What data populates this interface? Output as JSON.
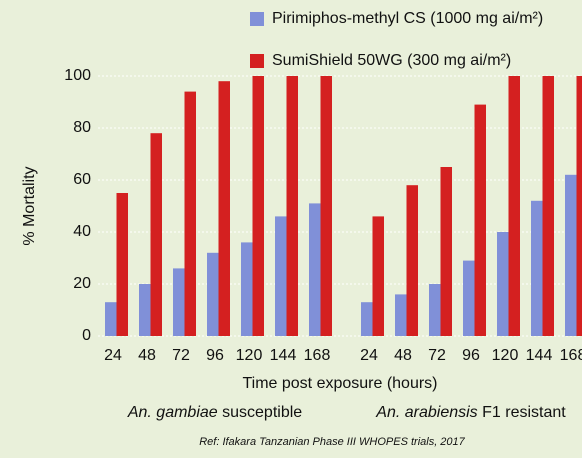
{
  "chart_data": {
    "type": "bar",
    "ylabel": "% Mortality",
    "xlabel": "Time post exposure (hours)",
    "note": "Ref: Ifakara Tanzanian Phase III WHOPES trials, 2017",
    "groups": [
      {
        "species": "An. gambiae",
        "status": "susceptible"
      },
      {
        "species": "An. arabiensis",
        "status": "F1 resistant"
      }
    ],
    "categories": [
      24,
      48,
      72,
      96,
      120,
      144,
      168,
      24,
      48,
      72,
      96,
      120,
      144,
      168
    ],
    "series": [
      {
        "name": "Pirimiphos-methyl CS (1000 mg ai/m²)",
        "color": "#8090d8",
        "values": [
          13,
          20,
          26,
          32,
          36,
          46,
          51,
          13,
          16,
          20,
          29,
          40,
          52,
          62
        ]
      },
      {
        "name": "SumiShield 50WG (300 mg ai/m²)",
        "color": "#d42020",
        "values": [
          55,
          78,
          94,
          98,
          100,
          100,
          100,
          46,
          58,
          65,
          89,
          100,
          100,
          100
        ]
      }
    ],
    "ylim": [
      0,
      100
    ],
    "yticks": [
      0,
      20,
      40,
      60,
      80,
      100
    ],
    "grid": true
  }
}
